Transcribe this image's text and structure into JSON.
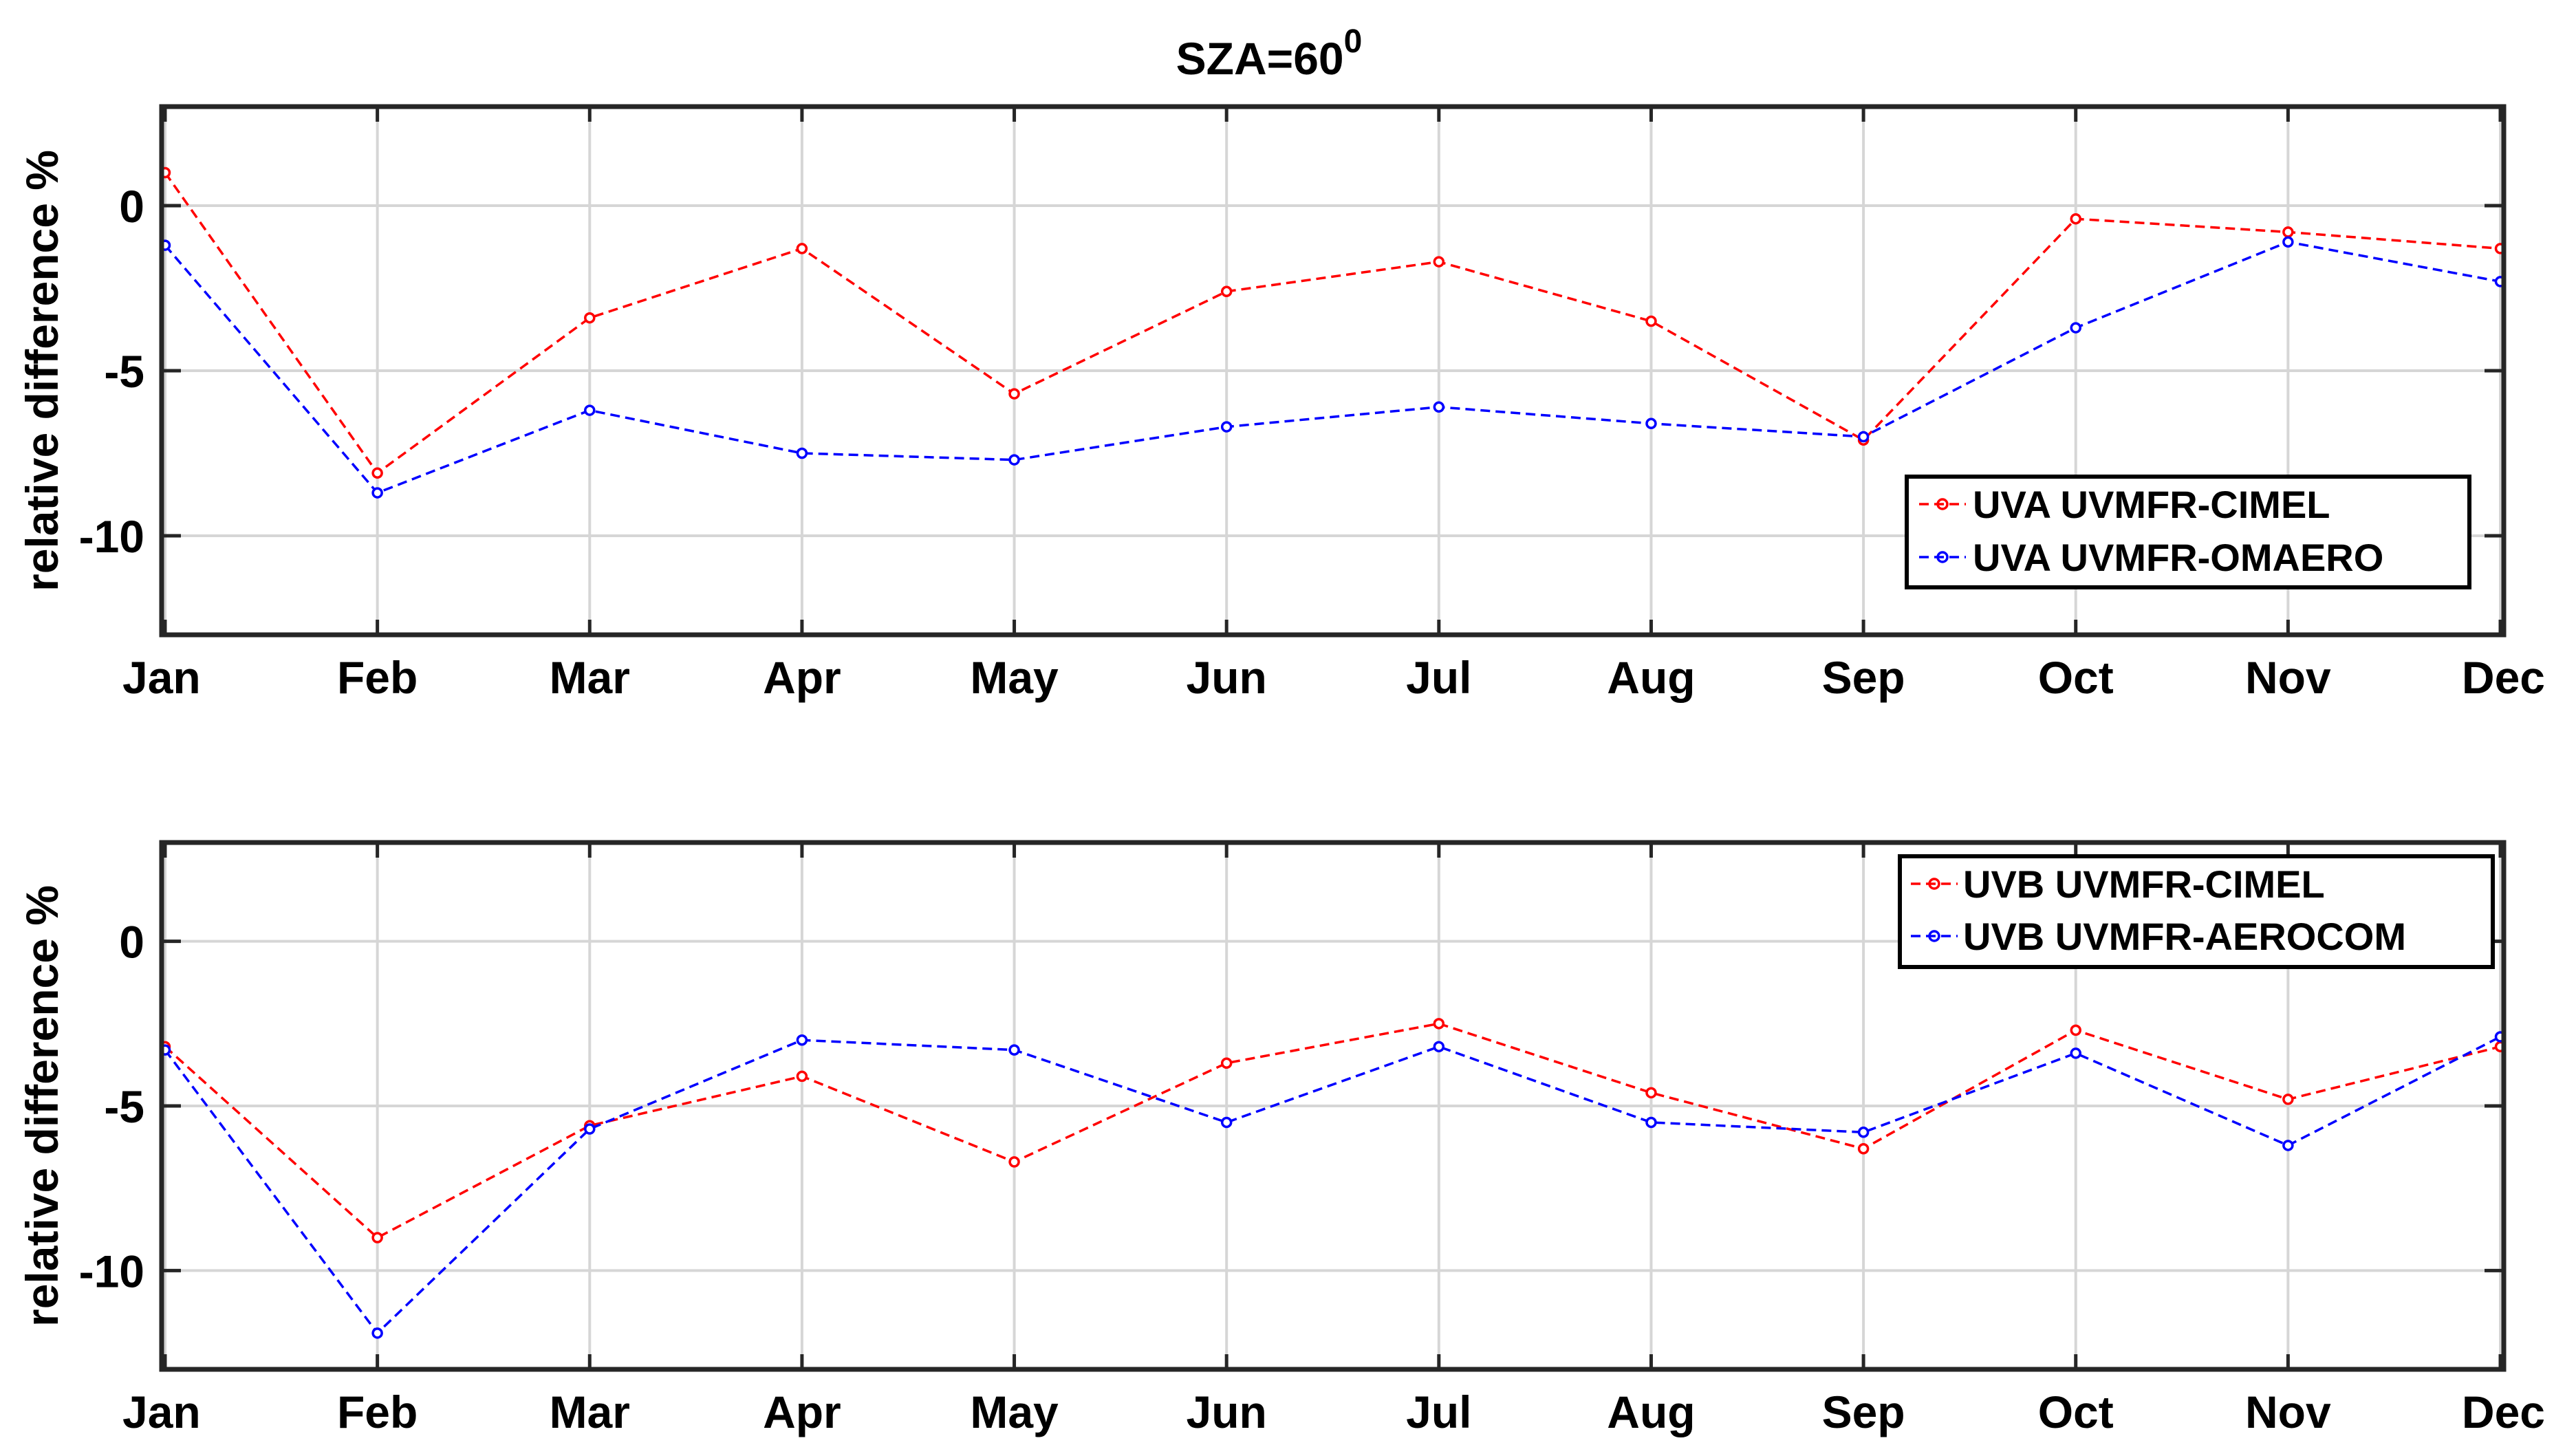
{
  "figure": {
    "title_main": "SZA=60",
    "title_sup": "0"
  },
  "colors": {
    "red": "#ff0000",
    "blue": "#0000ff",
    "grid": "#d6d6d6",
    "axis": "#262626"
  },
  "chart_data": [
    {
      "type": "line",
      "title": "SZA=60⁰",
      "xlabel": "",
      "ylabel": "relative difference %",
      "categories": [
        "Jan",
        "Feb",
        "Mar",
        "Apr",
        "May",
        "Jun",
        "Jul",
        "Aug",
        "Sep",
        "Oct",
        "Nov",
        "Dec"
      ],
      "ylim": [
        -13,
        3
      ],
      "yticks": [
        0,
        -5,
        -10
      ],
      "ytick_labels": [
        "0",
        "-5",
        "-10"
      ],
      "grid": true,
      "legend_position": "lower-right",
      "series": [
        {
          "name": "UVA UVMFR-CIMEL",
          "color": "red",
          "style": "dashed-marker",
          "values": [
            1.0,
            -8.1,
            -3.4,
            -1.3,
            -5.7,
            -2.6,
            -1.7,
            -3.5,
            -7.1,
            -0.4,
            -0.8,
            -1.3
          ]
        },
        {
          "name": "UVA UVMFR-OMAERO",
          "color": "blue",
          "style": "dashed-marker",
          "values": [
            -1.2,
            -8.7,
            -6.2,
            -7.5,
            -7.7,
            -6.7,
            -6.1,
            -6.6,
            -7.0,
            -3.7,
            -1.1,
            -2.3
          ]
        }
      ]
    },
    {
      "type": "line",
      "title": "",
      "xlabel": "",
      "ylabel": "relative difference %",
      "categories": [
        "Jan",
        "Feb",
        "Mar",
        "Apr",
        "May",
        "Jun",
        "Jul",
        "Aug",
        "Sep",
        "Oct",
        "Nov",
        "Dec"
      ],
      "ylim": [
        -13,
        3
      ],
      "yticks": [
        0,
        -5,
        -10
      ],
      "ytick_labels": [
        "0",
        "-5",
        "-10"
      ],
      "grid": true,
      "legend_position": "top-right",
      "series": [
        {
          "name": "UVB UVMFR-CIMEL",
          "color": "red",
          "style": "dashed-marker",
          "values": [
            -3.2,
            -9.0,
            -5.6,
            -4.1,
            -6.7,
            -3.7,
            -2.5,
            -4.6,
            -6.3,
            -2.7,
            -4.8,
            -3.2
          ]
        },
        {
          "name": "UVB UVMFR-AEROCOM",
          "color": "blue",
          "style": "dashed-marker",
          "values": [
            -3.3,
            -11.9,
            -5.7,
            -3.0,
            -3.3,
            -5.5,
            -3.2,
            -5.5,
            -5.8,
            -3.4,
            -6.2,
            -2.9
          ]
        }
      ]
    }
  ]
}
